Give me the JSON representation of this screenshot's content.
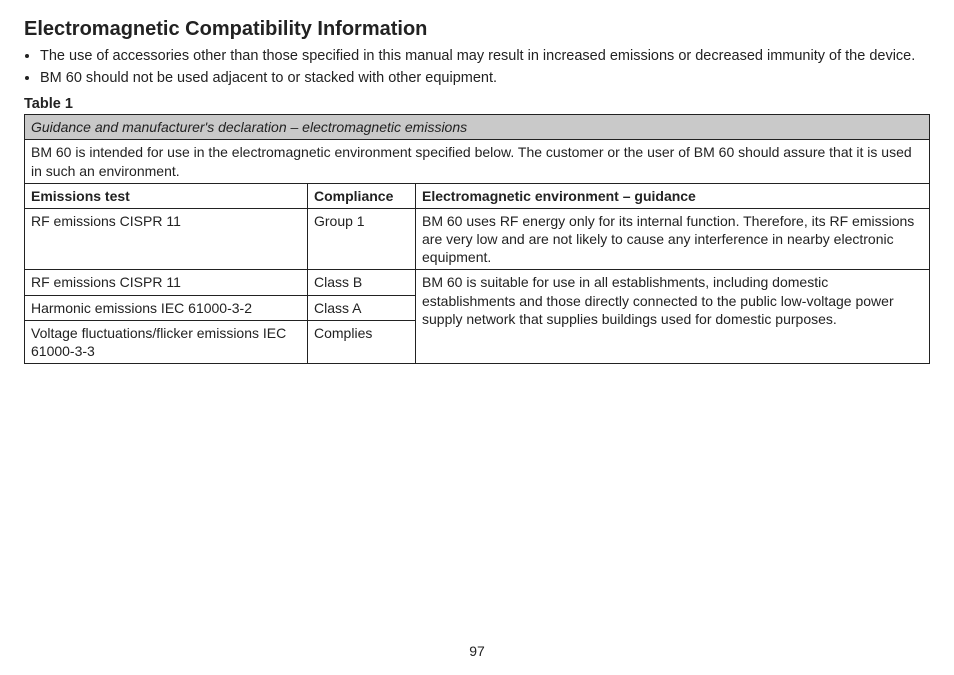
{
  "title": "Electromagnetic Compatibility Information",
  "bullets": [
    "The use of accessories other than those specified in this manual may result in increased emissions or decreased immunity of the device.",
    "BM 60 should not be used adjacent to or stacked with other equipment."
  ],
  "table_label": "Table 1",
  "table": {
    "banner": "Guidance and manufacturer's declaration – electromagnetic emissions",
    "intro": "BM 60 is intended for use in the electromagnetic environment specified below. The customer or the user of BM 60 should assure that it is used in such an environment.",
    "headers": {
      "test": "Emissions test",
      "compliance": "Compliance",
      "guidance": "Electromagnetic environment – guidance"
    },
    "row1": {
      "test": "RF emissions CISPR 11",
      "compliance": "Group 1",
      "guidance": "BM 60 uses RF energy only for its internal function. Therefore, its RF emissions are very low and are not likely to cause any interference in nearby electronic equipment."
    },
    "row2": {
      "test": "RF emissions CISPR 11",
      "compliance": "Class B"
    },
    "row3": {
      "test": "Harmonic emissions IEC 61000-3-2",
      "compliance": "Class A"
    },
    "row4": {
      "test": "Voltage fluctuations/flicker emissions IEC 61000-3-3",
      "compliance": "Complies"
    },
    "merged_guidance": "BM 60 is suitable for use in all establishments, including domestic establishments and those directly connected to the public low-voltage power supply network that supplies buildings used for domestic purposes."
  },
  "page_number": "97"
}
